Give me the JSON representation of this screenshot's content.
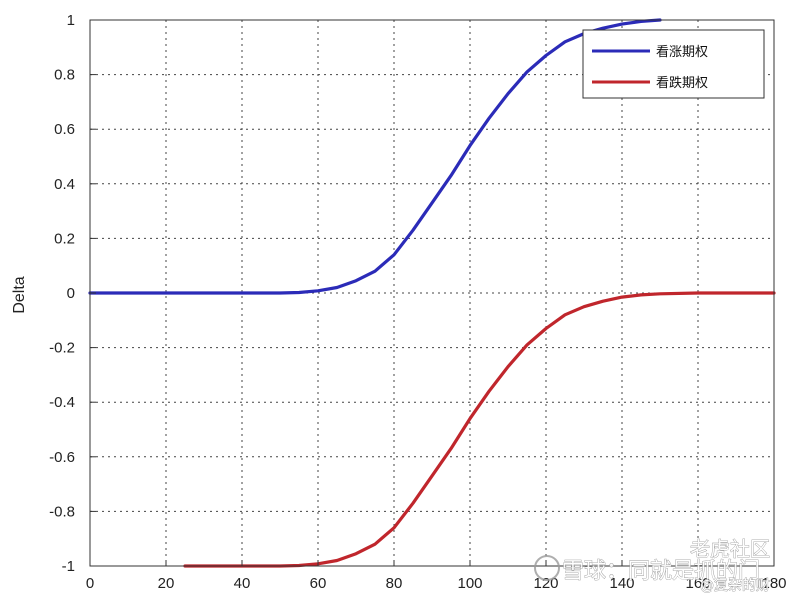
{
  "chart_data": {
    "type": "line",
    "title": "",
    "xlabel": "",
    "ylabel": "Delta",
    "xlim": [
      0,
      180
    ],
    "ylim": [
      -1,
      1
    ],
    "xticks": [
      0,
      20,
      40,
      60,
      80,
      100,
      120,
      140,
      160,
      180
    ],
    "yticks": [
      1,
      0.8,
      0.6,
      0.4,
      0.2,
      0,
      -0.2,
      -0.4,
      -0.6,
      -0.8,
      -1
    ],
    "grid": true,
    "legend_position": "top-right",
    "series": [
      {
        "name": "看涨期权",
        "color": "#2b2bb8",
        "x": [
          0,
          20,
          40,
          50,
          55,
          60,
          65,
          70,
          75,
          80,
          85,
          90,
          95,
          100,
          105,
          110,
          115,
          120,
          125,
          130,
          135,
          140,
          145,
          150
        ],
        "values": [
          0,
          0,
          0,
          0,
          0.002,
          0.008,
          0.02,
          0.045,
          0.08,
          0.14,
          0.23,
          0.33,
          0.43,
          0.54,
          0.64,
          0.73,
          0.81,
          0.87,
          0.92,
          0.95,
          0.97,
          0.985,
          0.995,
          1.0
        ]
      },
      {
        "name": "看跌期权",
        "color": "#c0262c",
        "x": [
          25,
          40,
          50,
          55,
          60,
          65,
          70,
          75,
          80,
          85,
          90,
          95,
          100,
          105,
          110,
          115,
          120,
          125,
          130,
          135,
          140,
          145,
          150,
          160,
          170,
          180
        ],
        "values": [
          -1.0,
          -1.0,
          -1.0,
          -0.998,
          -0.992,
          -0.98,
          -0.955,
          -0.92,
          -0.86,
          -0.77,
          -0.67,
          -0.57,
          -0.46,
          -0.36,
          -0.27,
          -0.19,
          -0.13,
          -0.08,
          -0.05,
          -0.03,
          -0.015,
          -0.007,
          -0.003,
          0,
          0,
          0
        ]
      }
    ]
  },
  "watermark": {
    "line1": "雪球：同就是抓的门",
    "line2": "老虎社区",
    "line3": "@复杂的财"
  }
}
